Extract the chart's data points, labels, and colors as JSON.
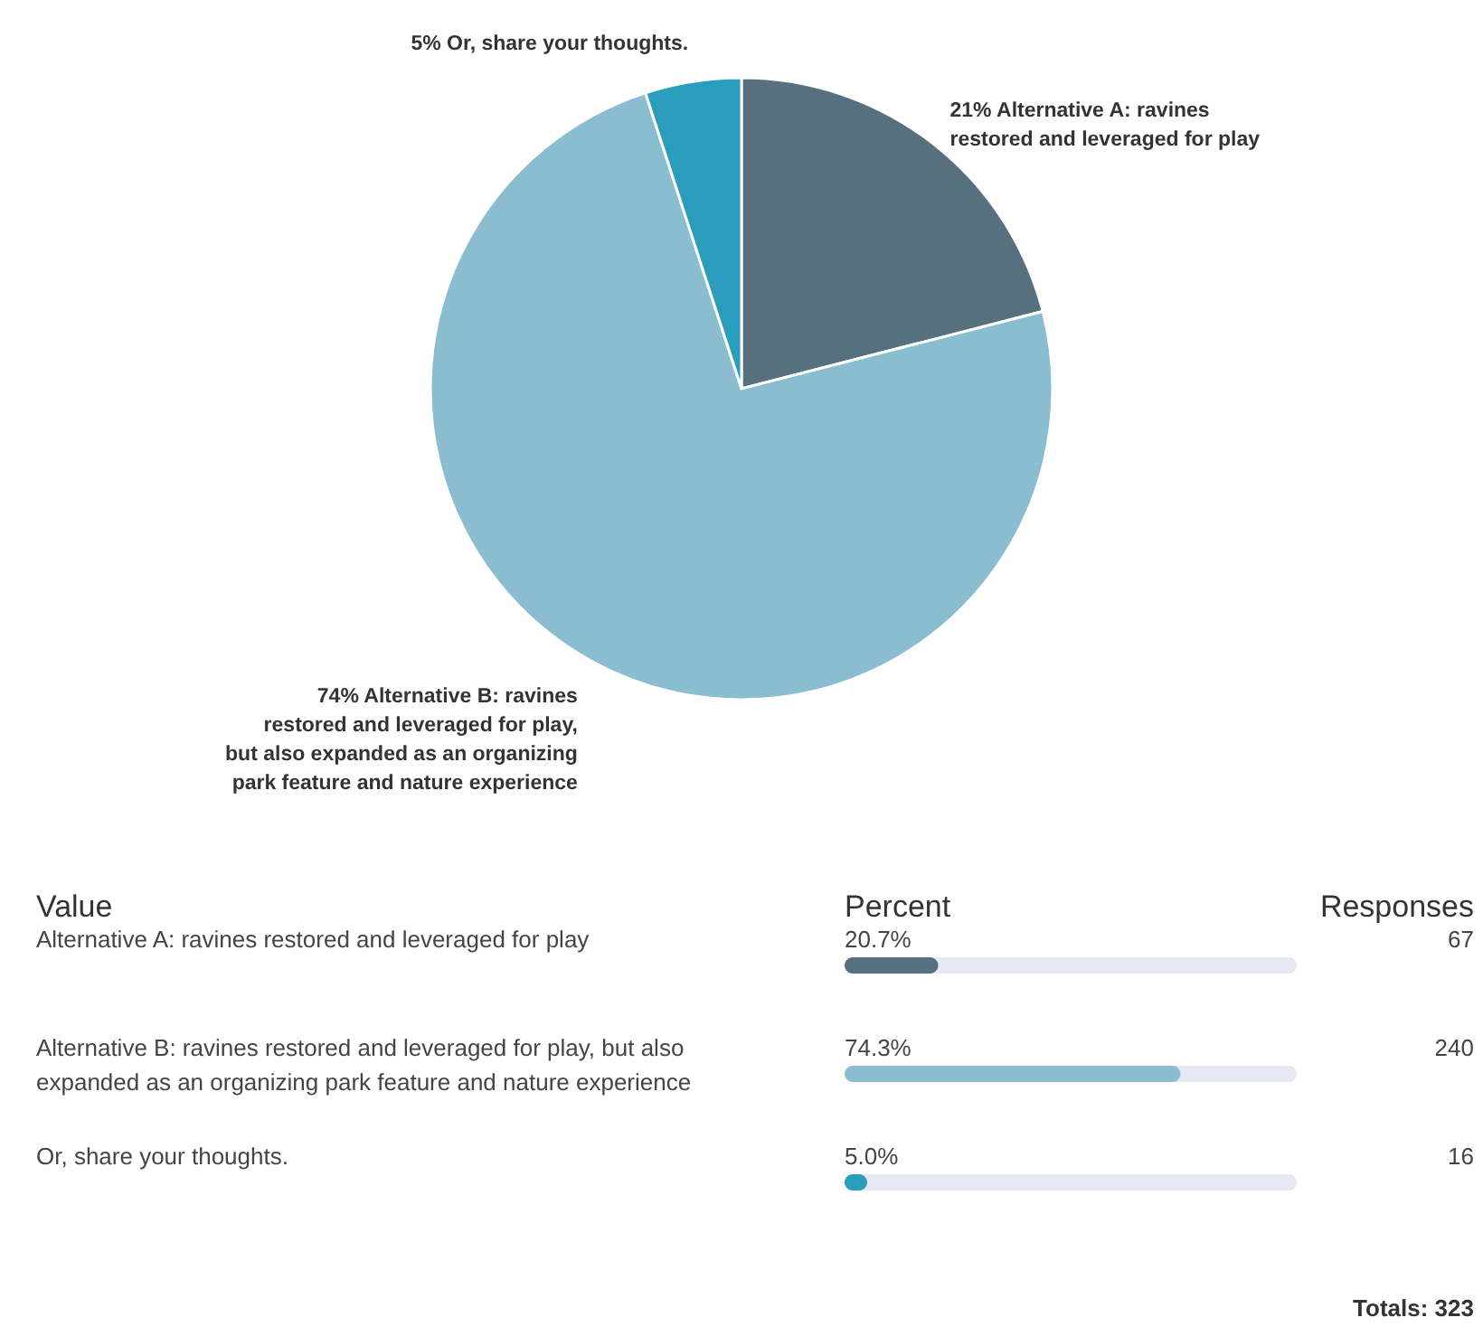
{
  "chart_data": [
    {
      "type": "pie",
      "categories": [
        "Alternative A: ravines restored and leveraged for play",
        "Alternative B: ravines restored and leveraged for play, but also expanded as an organizing park feature and nature experience",
        "Or, share your thoughts."
      ],
      "values": [
        21,
        74,
        5
      ],
      "value_labels": [
        "21%",
        "74%",
        "5%"
      ],
      "colors": [
        "#56707f",
        "#8bbdd1",
        "#2a9dbd"
      ]
    },
    {
      "type": "bar",
      "orientation": "horizontal",
      "categories": [
        "Alternative A: ravines restored and leveraged for play",
        "Alternative B: ravines restored and leveraged for play, but also expanded as an organizing park feature and nature experience",
        "Or, share your thoughts."
      ],
      "values": [
        20.7,
        74.3,
        5.0
      ],
      "value_labels": [
        "20.7%",
        "74.3%",
        "5.0%"
      ],
      "colors": [
        "#56707f",
        "#8bbdd1",
        "#2a9dbd"
      ],
      "xlim": [
        0,
        100
      ],
      "tick_labels": "y",
      "annotations": [
        "Value",
        "Percent",
        "Responses",
        "67",
        "240",
        "16",
        "Totals: 323"
      ]
    }
  ]
}
